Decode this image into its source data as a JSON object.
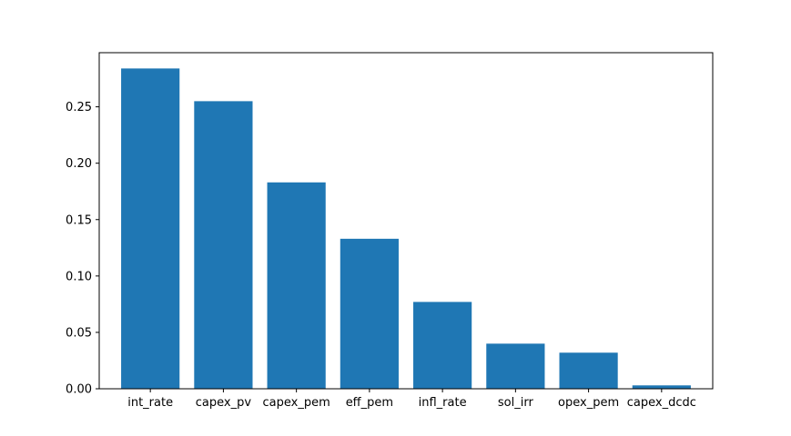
{
  "chart_data": {
    "type": "bar",
    "title": "",
    "xlabel": "",
    "ylabel": "",
    "categories": [
      "int_rate",
      "capex_pv",
      "capex_pem",
      "eff_pem",
      "infl_rate",
      "sol_irr",
      "opex_pem",
      "capex_dcdc"
    ],
    "values": [
      0.284,
      0.255,
      0.183,
      0.133,
      0.077,
      0.04,
      0.032,
      0.003
    ],
    "ylim": [
      0,
      0.298
    ],
    "yticks": [
      0.0,
      0.05,
      0.1,
      0.15,
      0.2,
      0.25
    ],
    "ytick_labels": [
      "0.00",
      "0.05",
      "0.10",
      "0.15",
      "0.20",
      "0.25"
    ],
    "grid": false,
    "legend": "none",
    "bar_color": "#1f77b4"
  }
}
